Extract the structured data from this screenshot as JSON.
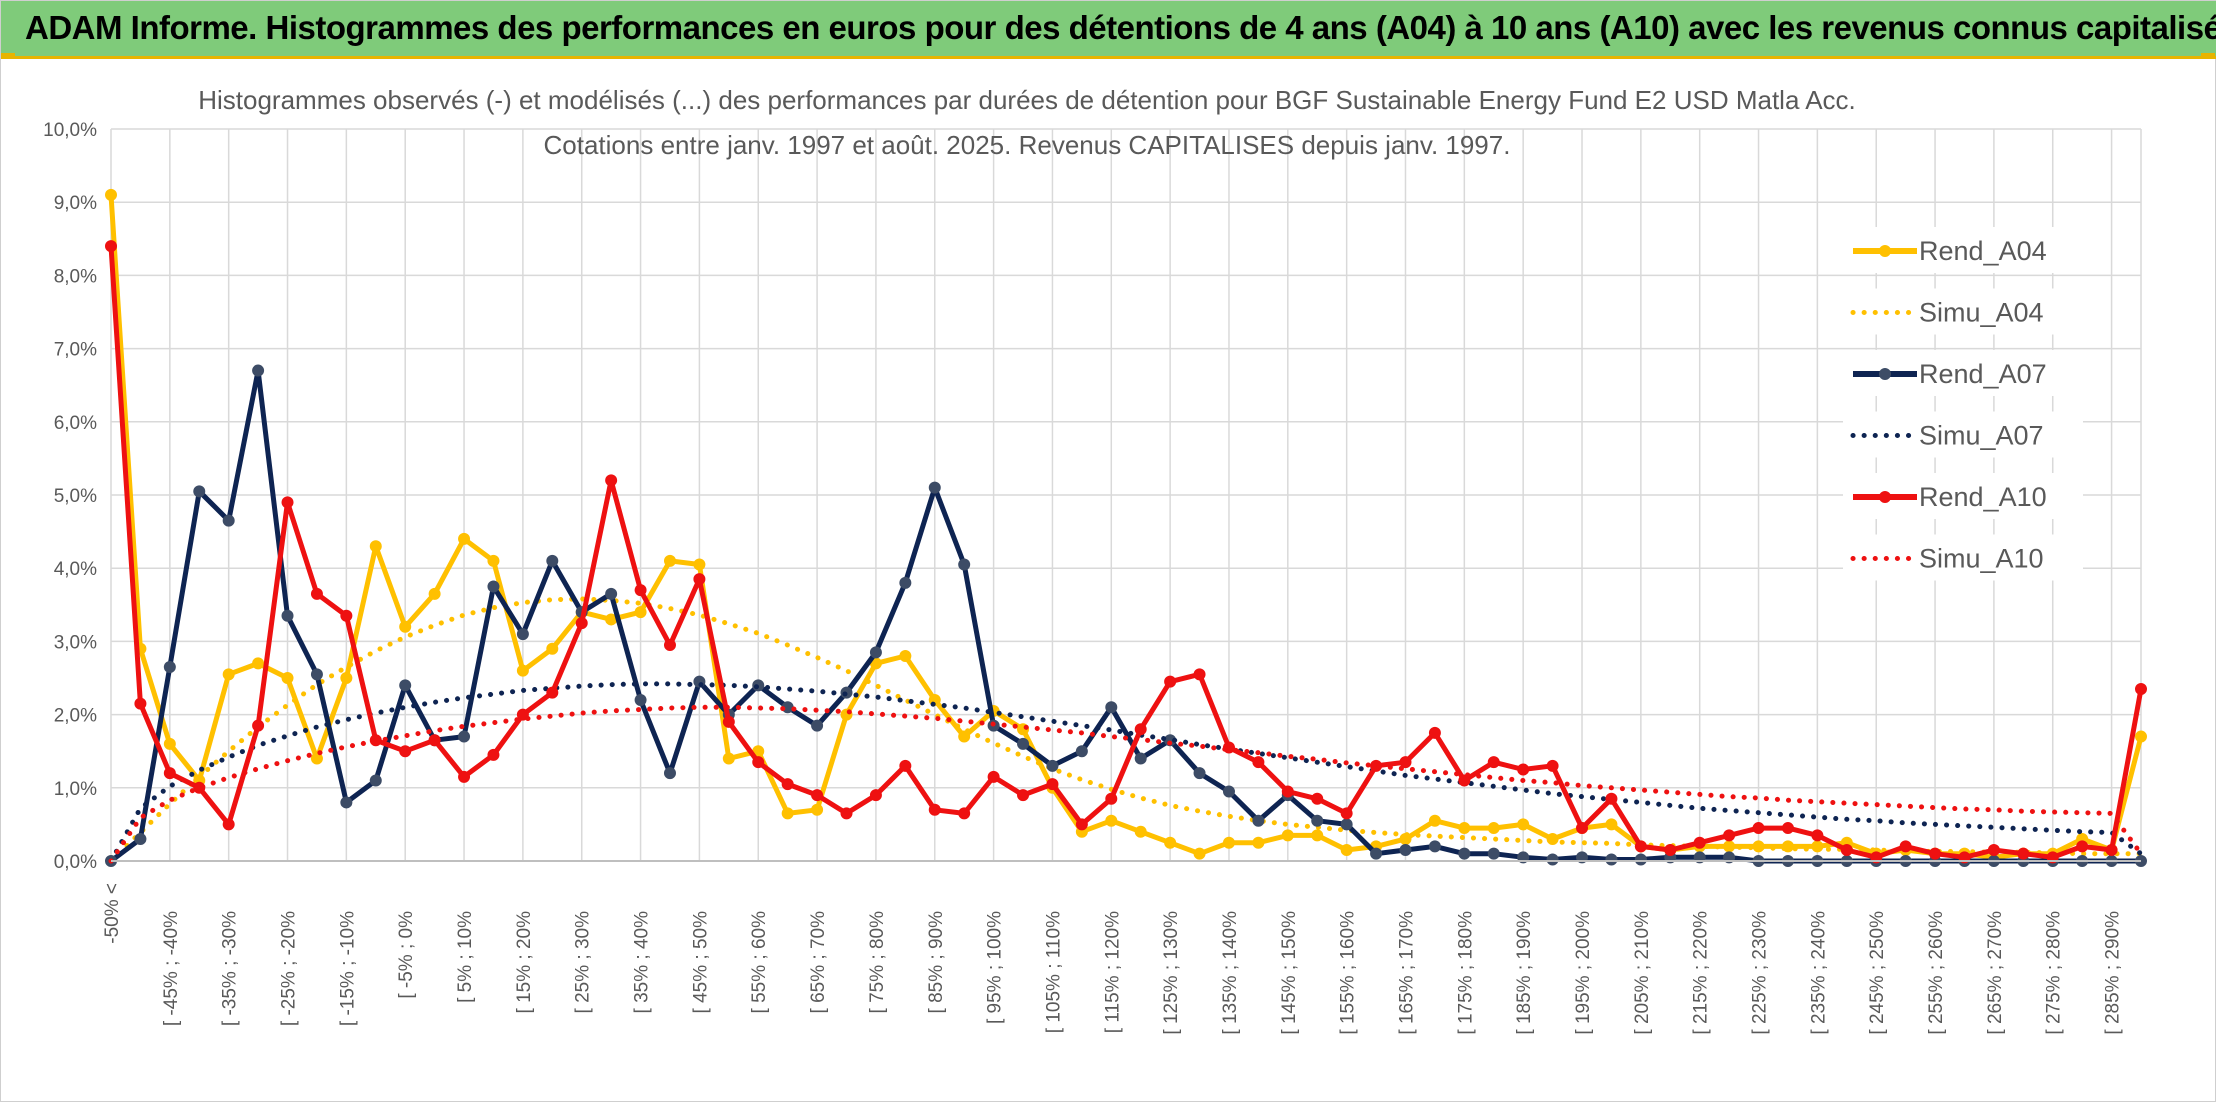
{
  "banner": {
    "title": "ADAM Informe. Histogrammes des performances en euros pour des détentions de 4 ans (A04) à 10 ans (A10) avec les revenus connus capitalisés"
  },
  "colors": {
    "banner_bg": "#7fcb7a",
    "accent_gold": "#e7b400",
    "a04": "#ffc000",
    "a07": "#0e2452",
    "a10": "#ee1111",
    "grid": "#d9d9d9",
    "text": "#595959"
  },
  "chart_data": {
    "type": "line",
    "title": [
      "Histogrammes observés (-) et modélisés (...) des performances par durées de détention pour BGF Sustainable Energy Fund E2 USD Matla Acc.",
      "Cotations entre janv. 1997 et août. 2025. Revenus CAPITALISES depuis janv. 1997."
    ],
    "xlabel": "",
    "ylabel": "",
    "ylim": [
      0,
      10
    ],
    "y_ticks": [
      "0,0%",
      "1,0%",
      "2,0%",
      "3,0%",
      "4,0%",
      "5,0%",
      "6,0%",
      "7,0%",
      "8,0%",
      "9,0%",
      "10,0%"
    ],
    "grid": true,
    "legend_position": "right",
    "x_tick_labels": [
      "-50% <",
      "[ -45% ; -40%",
      "[ -35% ; -30%",
      "[ -25% ; -20%",
      "[ -15% ; -10%",
      "[ -5% ; 0%",
      "[ 5% ; 10%",
      "[ 15% ; 20%",
      "[ 25% ; 30%",
      "[ 35% ; 40%",
      "[ 45% ; 50%",
      "[ 55% ; 60%",
      "[ 65% ; 70%",
      "[ 75% ; 80%",
      "[ 85% ; 90%",
      "[ 95% ; 100%",
      "[ 105% ; 110%",
      "[ 115% ; 120%",
      "[ 125% ; 130%",
      "[ 135% ; 140%",
      "[ 145% ; 150%",
      "[ 155% ; 160%",
      "[ 165% ; 170%",
      "[ 175% ; 180%",
      "[ 185% ; 190%",
      "[ 195% ; 200%",
      "[ 205% ; 210%",
      "[ 215% ; 220%",
      "[ 225% ; 230%",
      "[ 235% ; 240%",
      "[ 245% ; 250%",
      "[ 255% ; 260%",
      "[ 265% ; 270%",
      "[ 275% ; 280%",
      "[ 285% ; 290%"
    ],
    "series": [
      {
        "name": "Rend_A04",
        "style": "solid",
        "markers": true,
        "color": "#ffc000",
        "values": [
          9.1,
          2.9,
          1.6,
          1.1,
          2.55,
          2.7,
          2.5,
          1.4,
          2.5,
          4.3,
          3.2,
          3.65,
          4.4,
          4.1,
          2.6,
          2.9,
          3.4,
          3.3,
          3.4,
          4.1,
          4.05,
          1.4,
          1.5,
          0.65,
          0.7,
          2.0,
          2.7,
          2.8,
          2.2,
          1.7,
          2.05,
          1.8,
          1.0,
          0.4,
          0.55,
          0.4,
          0.25,
          0.1,
          0.25,
          0.25,
          0.35,
          0.35,
          0.15,
          0.2,
          0.3,
          0.55,
          0.45,
          0.45,
          0.5,
          0.3,
          0.45,
          0.5,
          0.2,
          0.15,
          0.2,
          0.2,
          0.2,
          0.2,
          0.2,
          0.25,
          0.1,
          0.15,
          0.1,
          0.1,
          0.05,
          0.1,
          0.1,
          0.3,
          0.15,
          1.7
        ]
      },
      {
        "name": "Simu_A04",
        "style": "dotted",
        "markers": false,
        "color": "#ffc000",
        "values": [
          0.0,
          0.39,
          0.78,
          1.15,
          1.5,
          1.83,
          2.13,
          2.41,
          2.65,
          2.87,
          3.06,
          3.22,
          3.36,
          3.46,
          3.53,
          3.57,
          3.58,
          3.56,
          3.52,
          3.45,
          3.36,
          3.24,
          3.11,
          2.95,
          2.78,
          2.6,
          2.4,
          2.2,
          2.0,
          1.8,
          1.61,
          1.43,
          1.26,
          1.11,
          0.98,
          0.86,
          0.76,
          0.68,
          0.61,
          0.55,
          0.5,
          0.46,
          0.42,
          0.39,
          0.36,
          0.34,
          0.32,
          0.3,
          0.28,
          0.26,
          0.25,
          0.24,
          0.22,
          0.21,
          0.2,
          0.19,
          0.18,
          0.17,
          0.16,
          0.16,
          0.15,
          0.14,
          0.13,
          0.13,
          0.12,
          0.12,
          0.11,
          0.1,
          0.1,
          0.1
        ]
      },
      {
        "name": "Rend_A07",
        "style": "solid",
        "markers": true,
        "color": "#0e2452",
        "values": [
          0.0,
          0.3,
          2.65,
          5.05,
          4.65,
          6.7,
          3.35,
          2.55,
          0.8,
          1.1,
          2.4,
          1.65,
          1.7,
          3.75,
          3.1,
          4.1,
          3.4,
          3.65,
          2.2,
          1.2,
          2.45,
          2.0,
          2.4,
          2.1,
          1.85,
          2.3,
          2.85,
          3.8,
          5.1,
          4.05,
          1.85,
          1.6,
          1.3,
          1.5,
          2.1,
          1.4,
          1.65,
          1.2,
          0.95,
          0.55,
          0.9,
          0.55,
          0.5,
          0.1,
          0.15,
          0.2,
          0.1,
          0.1,
          0.05,
          0.02,
          0.05,
          0.02,
          0.02,
          0.05,
          0.05,
          0.05,
          0.0,
          0.0,
          0.0,
          0.0,
          0.0,
          0.0,
          0.0,
          0.0,
          0.0,
          0.0,
          0.0,
          0.0,
          0.0,
          0.0
        ]
      },
      {
        "name": "Simu_A07",
        "style": "dotted",
        "markers": false,
        "color": "#0e2452",
        "values": [
          0.0,
          0.72,
          1.02,
          1.24,
          1.42,
          1.58,
          1.71,
          1.83,
          1.93,
          2.02,
          2.1,
          2.17,
          2.23,
          2.28,
          2.33,
          2.36,
          2.39,
          2.41,
          2.42,
          2.42,
          2.41,
          2.4,
          2.38,
          2.35,
          2.32,
          2.28,
          2.24,
          2.19,
          2.14,
          2.09,
          2.03,
          1.97,
          1.91,
          1.85,
          1.79,
          1.72,
          1.66,
          1.59,
          1.53,
          1.47,
          1.41,
          1.35,
          1.29,
          1.23,
          1.17,
          1.12,
          1.07,
          1.02,
          0.97,
          0.92,
          0.88,
          0.84,
          0.8,
          0.76,
          0.72,
          0.69,
          0.66,
          0.63,
          0.6,
          0.57,
          0.55,
          0.52,
          0.5,
          0.48,
          0.46,
          0.44,
          0.42,
          0.4,
          0.39,
          0.1
        ]
      },
      {
        "name": "Rend_A10",
        "style": "solid",
        "markers": true,
        "color": "#ee1111",
        "values": [
          8.4,
          2.15,
          1.2,
          1.0,
          0.5,
          1.85,
          4.9,
          3.65,
          3.35,
          1.65,
          1.5,
          1.65,
          1.15,
          1.45,
          2.0,
          2.3,
          3.25,
          5.2,
          3.7,
          2.95,
          3.85,
          1.9,
          1.35,
          1.05,
          0.9,
          0.65,
          0.9,
          1.3,
          0.7,
          0.65,
          1.15,
          0.9,
          1.05,
          0.5,
          0.85,
          1.8,
          2.45,
          2.55,
          1.55,
          1.35,
          0.95,
          0.85,
          0.65,
          1.3,
          1.35,
          1.75,
          1.1,
          1.35,
          1.25,
          1.3,
          0.45,
          0.85,
          0.2,
          0.15,
          0.25,
          0.35,
          0.45,
          0.45,
          0.35,
          0.15,
          0.05,
          0.2,
          0.1,
          0.05,
          0.15,
          0.1,
          0.05,
          0.2,
          0.15,
          2.35
        ]
      },
      {
        "name": "Simu_A10",
        "style": "dotted",
        "markers": false,
        "color": "#ee1111",
        "values": [
          0.0,
          0.59,
          0.83,
          1.0,
          1.14,
          1.26,
          1.37,
          1.47,
          1.56,
          1.64,
          1.71,
          1.78,
          1.84,
          1.89,
          1.94,
          1.98,
          2.02,
          2.05,
          2.07,
          2.09,
          2.1,
          2.1,
          2.09,
          2.08,
          2.06,
          2.04,
          2.01,
          1.98,
          1.95,
          1.91,
          1.87,
          1.83,
          1.79,
          1.75,
          1.7,
          1.66,
          1.61,
          1.57,
          1.52,
          1.48,
          1.43,
          1.39,
          1.34,
          1.3,
          1.26,
          1.22,
          1.18,
          1.14,
          1.1,
          1.07,
          1.03,
          1.0,
          0.97,
          0.94,
          0.91,
          0.88,
          0.86,
          0.83,
          0.81,
          0.79,
          0.77,
          0.75,
          0.73,
          0.71,
          0.7,
          0.68,
          0.67,
          0.66,
          0.65,
          0.1
        ]
      }
    ]
  }
}
